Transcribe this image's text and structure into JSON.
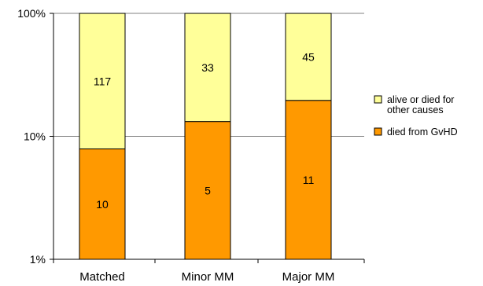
{
  "chart_data": {
    "type": "bar",
    "stacked": true,
    "scale": "log",
    "categories": [
      "Matched",
      "Minor MM",
      "Major MM"
    ],
    "ylim": [
      "1%",
      "100%"
    ],
    "yticks": [
      "1%",
      "10%",
      "100%"
    ],
    "grid": true,
    "legend_position": "right",
    "series": [
      {
        "name": "died from GvHD",
        "color": "#FF9900",
        "counts": [
          10,
          5,
          11
        ],
        "percent": [
          7.9,
          13.2,
          19.6
        ]
      },
      {
        "name": "alive or died for other causes",
        "color": "#FFFF99",
        "counts": [
          117,
          33,
          45
        ],
        "percent": [
          92.1,
          86.8,
          80.4
        ]
      }
    ],
    "legend": [
      {
        "lines": [
          "alive or died for",
          "other causes"
        ],
        "color": "#FFFF99"
      },
      {
        "lines": [
          "died from GvHD"
        ],
        "color": "#FF9900"
      }
    ]
  }
}
